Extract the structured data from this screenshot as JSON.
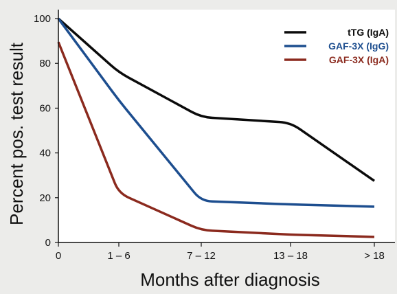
{
  "chart_data": {
    "type": "line",
    "title": "",
    "xlabel": "Months after diagnosis",
    "ylabel": "Percent pos. test result",
    "categories": [
      "0",
      "1 – 6",
      "7 – 12",
      "13 – 18",
      "> 18"
    ],
    "ylim": [
      0,
      104
    ],
    "yticks": [
      "0",
      "20",
      "40",
      "60",
      "80",
      "100"
    ],
    "grid": false,
    "legend_position": "top-right",
    "series": [
      {
        "name": "tTG (IgA)",
        "color": "#0b0b0b",
        "values": [
          100,
          76,
          56,
          53.5,
          27.5
        ]
      },
      {
        "name": "GAF-3X (IgG)",
        "color": "#1d4e8f",
        "values": [
          100,
          63.5,
          18.5,
          17,
          16
        ]
      },
      {
        "name": "GAF-3X (IgA)",
        "color": "#8b2a1e",
        "values": [
          89.5,
          22,
          5.5,
          3.5,
          2.5
        ]
      }
    ]
  }
}
